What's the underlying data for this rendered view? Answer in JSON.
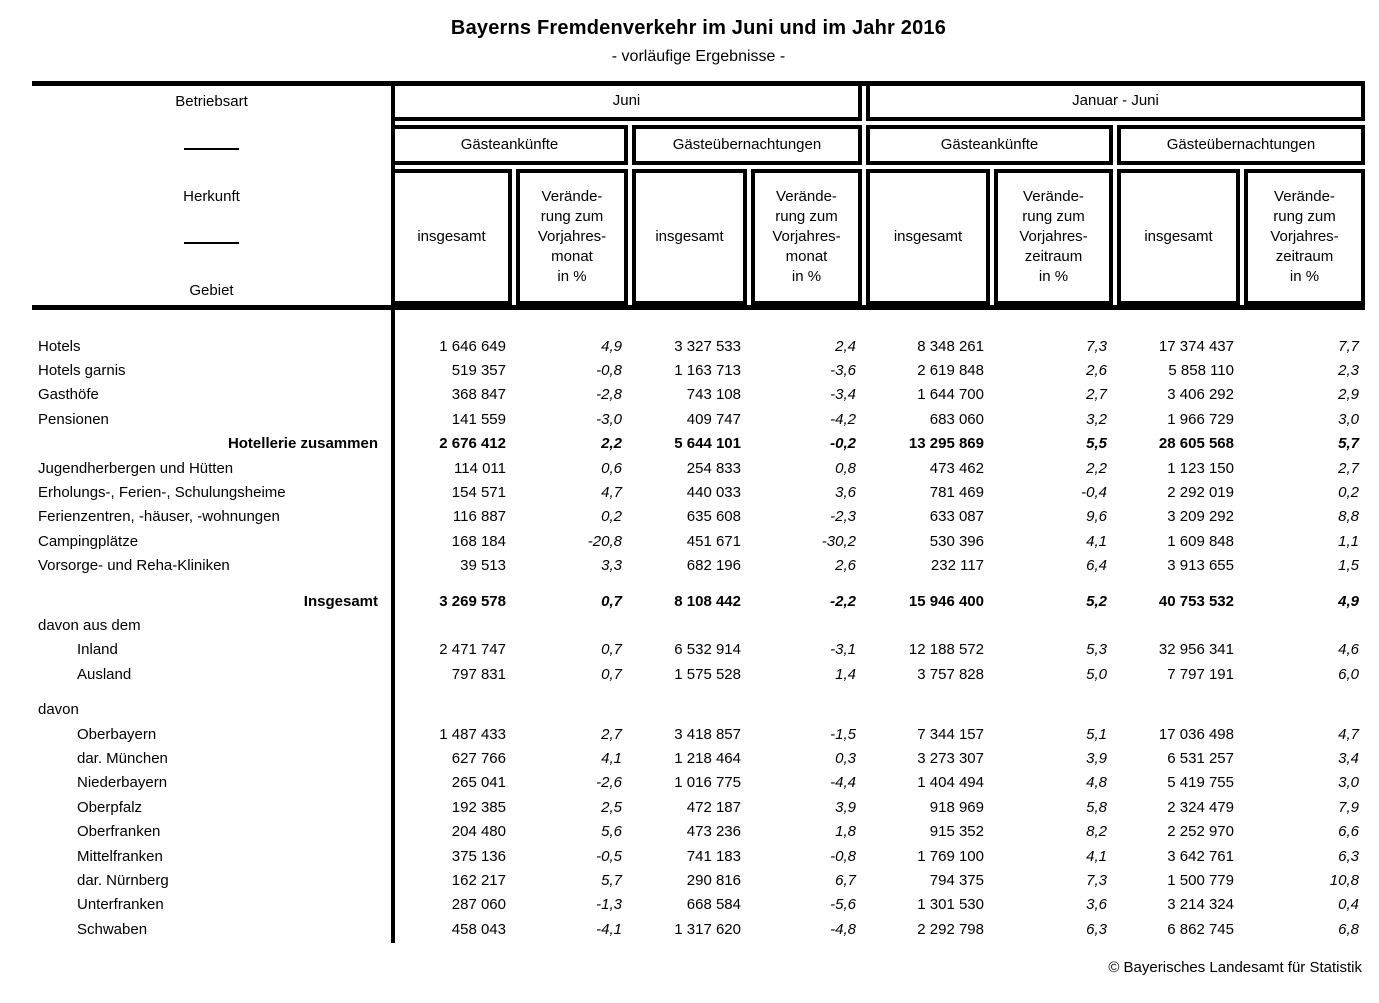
{
  "title": "Bayerns Fremdenverkehr im Juni und im Jahr 2016",
  "subtitle": "- vorläufige Ergebnisse -",
  "footer_credit": "© Bayerisches Landesamt für Statistik",
  "stub": {
    "line1": "Betriebsart",
    "line2": "Herkunft",
    "line3": "Gebiet"
  },
  "header": {
    "group1": "Juni",
    "group2": "Januar - Juni",
    "arrivals": "Gästeankünfte",
    "overnights": "Gästeübernachtungen",
    "insgesamt": "insgesamt",
    "change_month": "Verände-\nrung zum\nVorjahres-\nmonat\nin %",
    "change_period": "Verände-\nrung zum\nVorjahres-\nzeitraum\nin %"
  },
  "rows": [
    {
      "label": "Hotels",
      "style": "base",
      "values": [
        "1 646 649",
        "4,9",
        "3 327 533",
        "2,4",
        "8 348 261",
        "7,3",
        "17 374 437",
        "7,7"
      ]
    },
    {
      "label": "Hotels garnis",
      "style": "base",
      "values": [
        "519 357",
        "-0,8",
        "1 163 713",
        "-3,6",
        "2 619 848",
        "2,6",
        "5 858 110",
        "2,3"
      ]
    },
    {
      "label": "Gasthöfe",
      "style": "base",
      "values": [
        "368 847",
        "-2,8",
        "743 108",
        "-3,4",
        "1 644 700",
        "2,7",
        "3 406 292",
        "2,9"
      ]
    },
    {
      "label": "Pensionen",
      "style": "base",
      "values": [
        "141 559",
        "-3,0",
        "409 747",
        "-4,2",
        "683 060",
        "3,2",
        "1 966 729",
        "3,0"
      ]
    },
    {
      "label": "Hotellerie zusammen",
      "style": "sum",
      "values": [
        "2 676 412",
        "2,2",
        "5 644 101",
        "-0,2",
        "13 295 869",
        "5,5",
        "28 605 568",
        "5,7"
      ]
    },
    {
      "label": "Jugendherbergen und Hütten",
      "style": "base",
      "values": [
        "114 011",
        "0,6",
        "254 833",
        "0,8",
        "473 462",
        "2,2",
        "1 123 150",
        "2,7"
      ]
    },
    {
      "label": "Erholungs-, Ferien-, Schulungsheime",
      "style": "base",
      "values": [
        "154 571",
        "4,7",
        "440 033",
        "3,6",
        "781 469",
        "-0,4",
        "2 292 019",
        "0,2"
      ]
    },
    {
      "label": "Ferienzentren, -häuser, -wohnungen",
      "style": "base",
      "values": [
        "116 887",
        "0,2",
        "635 608",
        "-2,3",
        "633 087",
        "9,6",
        "3 209 292",
        "8,8"
      ]
    },
    {
      "label": "Campingplätze",
      "style": "base",
      "values": [
        "168 184",
        "-20,8",
        "451 671",
        "-30,2",
        "530 396",
        "4,1",
        "1 609 848",
        "1,1"
      ]
    },
    {
      "label": "Vorsorge- und Reha-Kliniken",
      "style": "base",
      "values": [
        "39 513",
        "3,3",
        "682 196",
        "2,6",
        "232 117",
        "6,4",
        "3 913 655",
        "1,5"
      ]
    },
    {
      "style": "spacer"
    },
    {
      "label": "Insgesamt",
      "style": "sum",
      "values": [
        "3 269 578",
        "0,7",
        "8 108 442",
        "-2,2",
        "15 946 400",
        "5,2",
        "40 753 532",
        "4,9"
      ]
    },
    {
      "label": "davon aus dem",
      "style": "label",
      "values": []
    },
    {
      "label": "Inland",
      "style": "indent",
      "values": [
        "2 471 747",
        "0,7",
        "6 532 914",
        "-3,1",
        "12 188 572",
        "5,3",
        "32 956 341",
        "4,6"
      ]
    },
    {
      "label": "Ausland",
      "style": "indent",
      "values": [
        "797 831",
        "0,7",
        "1 575 528",
        "1,4",
        "3 757 828",
        "5,0",
        "7 797 191",
        "6,0"
      ]
    },
    {
      "style": "spacer"
    },
    {
      "label": "davon",
      "style": "label",
      "values": []
    },
    {
      "label": "Oberbayern",
      "style": "indent",
      "values": [
        "1 487 433",
        "2,7",
        "3 418 857",
        "-1,5",
        "7 344 157",
        "5,1",
        "17 036 498",
        "4,7"
      ]
    },
    {
      "label": "dar. München",
      "style": "indent",
      "values": [
        "627 766",
        "4,1",
        "1 218 464",
        "0,3",
        "3 273 307",
        "3,9",
        "6 531 257",
        "3,4"
      ]
    },
    {
      "label": "Niederbayern",
      "style": "indent",
      "values": [
        "265 041",
        "-2,6",
        "1 016 775",
        "-4,4",
        "1 404 494",
        "4,8",
        "5 419 755",
        "3,0"
      ]
    },
    {
      "label": "Oberpfalz",
      "style": "indent",
      "values": [
        "192 385",
        "2,5",
        "472 187",
        "3,9",
        "918 969",
        "5,8",
        "2 324 479",
        "7,9"
      ]
    },
    {
      "label": "Oberfranken",
      "style": "indent",
      "values": [
        "204 480",
        "5,6",
        "473 236",
        "1,8",
        "915 352",
        "8,2",
        "2 252 970",
        "6,6"
      ]
    },
    {
      "label": "Mittelfranken",
      "style": "indent",
      "values": [
        "375 136",
        "-0,5",
        "741 183",
        "-0,8",
        "1 769 100",
        "4,1",
        "3 642 761",
        "6,3"
      ]
    },
    {
      "label": "dar. Nürnberg",
      "style": "indent",
      "values": [
        "162 217",
        "5,7",
        "290 816",
        "6,7",
        "794 375",
        "7,3",
        "1 500 779",
        "10,8"
      ]
    },
    {
      "label": "Unterfranken",
      "style": "indent",
      "values": [
        "287 060",
        "-1,3",
        "668 584",
        "-5,6",
        "1 301 530",
        "3,6",
        "3 214 324",
        "0,4"
      ]
    },
    {
      "label": "Schwaben",
      "style": "indent",
      "values": [
        "458 043",
        "-4,1",
        "1 317 620",
        "-4,8",
        "2 292 798",
        "6,3",
        "6 862 745",
        "6,8"
      ]
    }
  ]
}
